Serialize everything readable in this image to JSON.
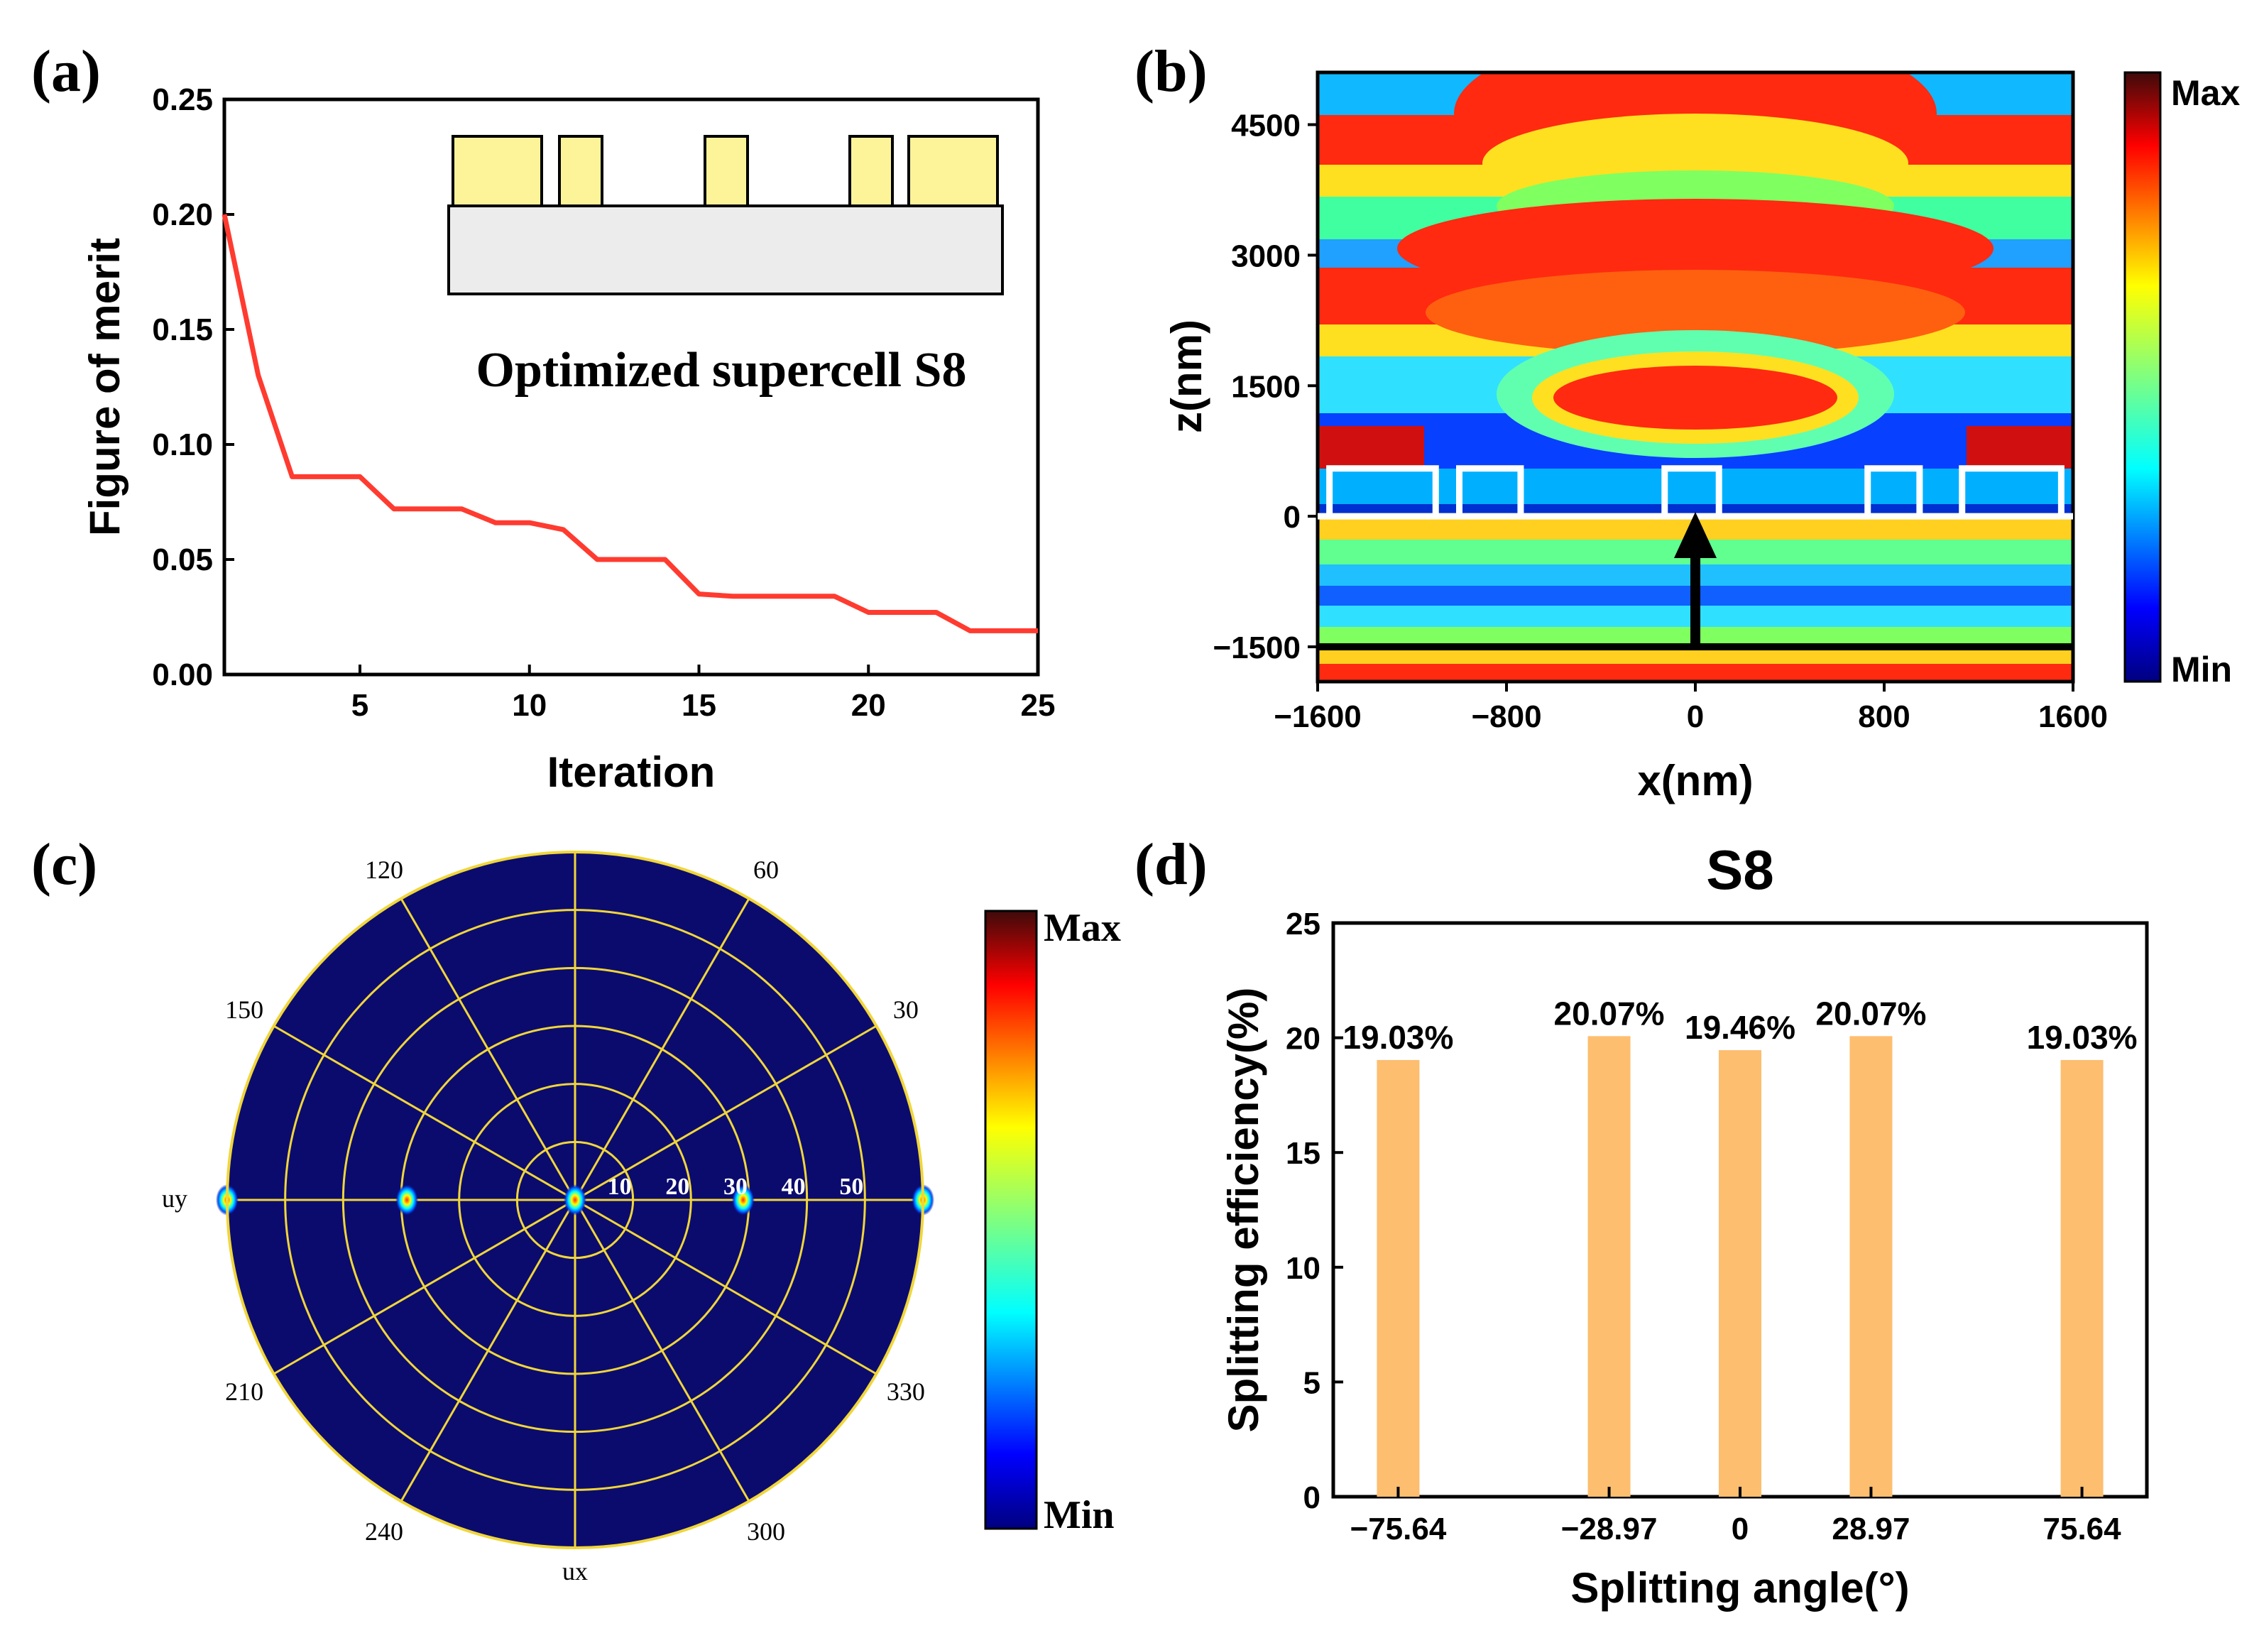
{
  "panels": {
    "a": "(a)",
    "b": "(b)",
    "c": "(c)",
    "d": "(d)"
  },
  "colors": {
    "line": "#ff3b30",
    "bar": "#fdbe6f",
    "polar_bg": "#0b0b6e",
    "polar_grid": "#f0d63a",
    "pillar_fill": "#fdf49a",
    "substrate_fill": "#ececec"
  },
  "chart_data": [
    {
      "id": "a",
      "type": "line",
      "title": "",
      "xlabel": "Iteration",
      "ylabel": "Figure of merit",
      "xlim": [
        1,
        25
      ],
      "ylim": [
        0,
        0.25
      ],
      "xticks": [
        5,
        10,
        15,
        20,
        25
      ],
      "xtick_labels": [
        "5",
        "10",
        "15",
        "20",
        "25"
      ],
      "yticks": [
        0,
        0.05,
        0.1,
        0.15,
        0.2,
        0.25
      ],
      "ytick_labels": [
        "0.00",
        "0.05",
        "0.10",
        "0.15",
        "0.20",
        "0.25"
      ],
      "x": [
        1,
        2,
        3,
        4,
        5,
        6,
        7,
        8,
        9,
        10,
        11,
        12,
        13,
        14,
        15,
        16,
        17,
        18,
        19,
        20,
        21,
        22,
        23,
        24,
        25
      ],
      "y": [
        0.2,
        0.13,
        0.086,
        0.086,
        0.086,
        0.072,
        0.072,
        0.072,
        0.066,
        0.066,
        0.063,
        0.05,
        0.05,
        0.05,
        0.035,
        0.034,
        0.034,
        0.034,
        0.034,
        0.027,
        0.027,
        0.027,
        0.019,
        0.019,
        0.019
      ],
      "inset_label": "Optimized  supercell S8"
    },
    {
      "id": "b",
      "type": "heatmap",
      "title": "",
      "xlabel": "x(nm)",
      "ylabel": "z(nm)",
      "xlim": [
        -1600,
        1600
      ],
      "ylim": [
        -1900,
        5100
      ],
      "xticks": [
        -1600,
        -800,
        0,
        800,
        1600
      ],
      "xtick_labels": [
        "−1600",
        "−800",
        "0",
        "800",
        "1600"
      ],
      "yticks": [
        -1500,
        0,
        1500,
        3000,
        4500
      ],
      "ytick_labels": [
        "−1500",
        "0",
        "1500",
        "3000",
        "4500"
      ],
      "colorbar": {
        "max": "Max",
        "min": "Min"
      },
      "pillars_nm": [
        [
          -1550,
          -1100
        ],
        [
          -1000,
          -740
        ],
        [
          -130,
          100
        ],
        [
          730,
          950
        ],
        [
          1130,
          1550
        ]
      ],
      "pillar_height_nm": 550,
      "source_z_nm": -1500
    },
    {
      "id": "c",
      "type": "polar",
      "angle_labels": [
        "60",
        "30",
        "330",
        "300",
        "240",
        "210",
        "150",
        "120"
      ],
      "angle_values": [
        60,
        30,
        330,
        300,
        240,
        210,
        150,
        120
      ],
      "ring_labels": [
        "10",
        "20",
        "30",
        "40",
        "50"
      ],
      "ring_values": [
        10,
        20,
        30,
        40,
        50,
        60
      ],
      "axis_labels": {
        "left": "uy",
        "bottom": "ux"
      },
      "rmax": 60,
      "hotspots": [
        {
          "angle": 0,
          "r": 0
        },
        {
          "angle": 0,
          "r": 29
        },
        {
          "angle": 180,
          "r": 29
        },
        {
          "angle": 0,
          "r": 60
        },
        {
          "angle": 180,
          "r": 60
        }
      ],
      "colorbar": {
        "max": "Max",
        "min": "Min"
      }
    },
    {
      "id": "d",
      "type": "bar",
      "title": "S8",
      "xlabel": "Splitting angle(°)",
      "ylabel": "Splitting efficiency(%)",
      "ylim": [
        0,
        25
      ],
      "yticks": [
        0,
        5,
        10,
        15,
        20,
        25
      ],
      "ytick_labels": [
        "0",
        "5",
        "10",
        "15",
        "20",
        "25"
      ],
      "categories": [
        "−75.64",
        "−28.97",
        "0",
        "28.97",
        "75.64"
      ],
      "x": [
        -75.64,
        -28.97,
        0,
        28.97,
        75.64
      ],
      "xlim": [
        -90,
        90
      ],
      "values": [
        19.03,
        20.07,
        19.46,
        20.07,
        19.03
      ],
      "value_labels": [
        "19.03%",
        "20.07%",
        "19.46%",
        "20.07%",
        "19.03%"
      ]
    }
  ]
}
